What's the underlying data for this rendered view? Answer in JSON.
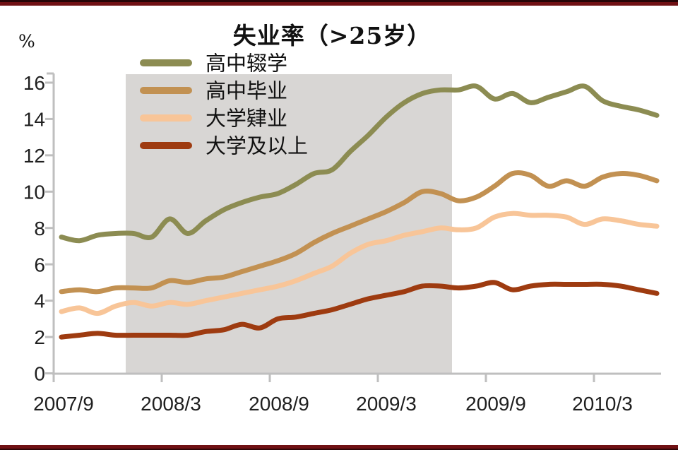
{
  "page": {
    "background": "#ffffff",
    "top_border_color": "#701114",
    "bottom_border_color": "#701114"
  },
  "chart_data": {
    "type": "line",
    "title": "失业率（>25岁）",
    "y_unit": "%",
    "ylim": [
      0,
      16
    ],
    "yticks": [
      0,
      2,
      4,
      6,
      8,
      10,
      12,
      14,
      16
    ],
    "x_tick_labels": [
      "2007/9",
      "2008/3",
      "2008/9",
      "2009/3",
      "2009/9",
      "2010/3"
    ],
    "x_start_month": "2007/9",
    "x_end_month": "2010/6",
    "grid": false,
    "legend_position": "top-left-inside",
    "axis_color": "#bfbfbf",
    "text_color": "#1f1f1f",
    "recession_band": {
      "from": "2007/12",
      "to": "2009/6",
      "color": "#d8d6d4"
    },
    "series": [
      {
        "name": "高中辍学",
        "color": "#8c8c52",
        "values": [
          7.5,
          7.3,
          7.6,
          7.7,
          7.7,
          7.5,
          8.5,
          7.7,
          8.4,
          9.0,
          9.4,
          9.7,
          9.9,
          10.4,
          11.0,
          11.2,
          12.2,
          13.1,
          14.1,
          14.9,
          15.4,
          15.6,
          15.6,
          15.8,
          15.1,
          15.4,
          14.9,
          15.2,
          15.5,
          15.8,
          15.0,
          14.7,
          14.5,
          14.2
        ]
      },
      {
        "name": "高中毕业",
        "color": "#c29152",
        "values": [
          4.5,
          4.6,
          4.5,
          4.7,
          4.7,
          4.7,
          5.1,
          5.0,
          5.2,
          5.3,
          5.6,
          5.9,
          6.2,
          6.6,
          7.2,
          7.7,
          8.1,
          8.5,
          8.9,
          9.4,
          10.0,
          9.9,
          9.5,
          9.7,
          10.3,
          11.0,
          10.9,
          10.3,
          10.6,
          10.3,
          10.8,
          11.0,
          10.9,
          10.6
        ]
      },
      {
        "name": "大学肄业",
        "color": "#f8c598",
        "values": [
          3.4,
          3.6,
          3.3,
          3.7,
          3.9,
          3.7,
          3.9,
          3.8,
          4.0,
          4.2,
          4.4,
          4.6,
          4.8,
          5.1,
          5.5,
          5.9,
          6.6,
          7.1,
          7.3,
          7.6,
          7.8,
          8.0,
          7.9,
          8.0,
          8.6,
          8.8,
          8.7,
          8.7,
          8.6,
          8.2,
          8.5,
          8.4,
          8.2,
          8.1
        ]
      },
      {
        "name": "大学及以上",
        "color": "#9e3b10",
        "values": [
          2.0,
          2.1,
          2.2,
          2.1,
          2.1,
          2.1,
          2.1,
          2.1,
          2.3,
          2.4,
          2.7,
          2.5,
          3.0,
          3.1,
          3.3,
          3.5,
          3.8,
          4.1,
          4.3,
          4.5,
          4.8,
          4.8,
          4.7,
          4.8,
          5.0,
          4.6,
          4.8,
          4.9,
          4.9,
          4.9,
          4.9,
          4.8,
          4.6,
          4.4
        ]
      }
    ]
  }
}
